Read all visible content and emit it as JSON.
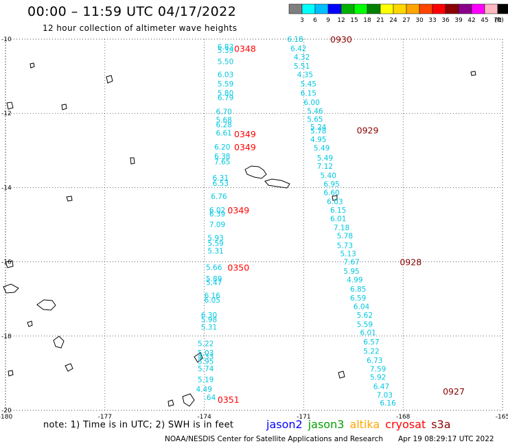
{
  "header": {
    "title": "00:00 – 11:59 UTC 04/17/2022",
    "subtitle": "12 hour collection of altimeter wave heights"
  },
  "colorbar": {
    "unit": "(ft)",
    "ticks": [
      "3",
      "6",
      "9",
      "12",
      "15",
      "18",
      "21",
      "24",
      "27",
      "30",
      "33",
      "36",
      "39",
      "42",
      "45",
      "70"
    ],
    "colors": [
      "#7f7f7f",
      "#00ffff",
      "#00bfff",
      "#0000ff",
      "#00b000",
      "#00ff00",
      "#008000",
      "#ffff00",
      "#ffd700",
      "#ffa500",
      "#ff4500",
      "#ff0000",
      "#8b0000",
      "#8b008b",
      "#ff00ff",
      "#ffb6c1",
      "#000000"
    ]
  },
  "map": {
    "lat_labels": [
      "-10",
      "-12",
      "-14",
      "-16",
      "-18",
      "-20"
    ],
    "lon_labels": [
      "-180",
      "-177",
      "-174",
      "-171",
      "-168",
      "-165"
    ],
    "tracks": [
      {
        "satellite": "jason2",
        "color": "#00c8e0",
        "times": [
          {
            "label": "0348",
            "lat": -10.25,
            "lon": -173.1
          },
          {
            "label": "0349",
            "lat": -12.55,
            "lon": -173.1
          },
          {
            "label": "0349",
            "lat": -12.9,
            "lon": -173.1
          },
          {
            "label": "0349",
            "lat": -14.6,
            "lon": -173.3
          },
          {
            "label": "0350",
            "lat": -16.15,
            "lon": -173.3
          },
          {
            "label": "0351",
            "lat": -19.7,
            "lon": -173.6
          }
        ],
        "points": [
          {
            "v": "6.83",
            "lat": -10.2,
            "lon": -173.6
          },
          {
            "v": "5.39",
            "lat": -10.3,
            "lon": -173.6
          },
          {
            "v": "5.50",
            "lat": -10.6,
            "lon": -173.6
          },
          {
            "v": "6.03",
            "lat": -10.95,
            "lon": -173.6
          },
          {
            "v": "5.59",
            "lat": -11.2,
            "lon": -173.6
          },
          {
            "v": "5.80",
            "lat": -11.45,
            "lon": -173.6
          },
          {
            "v": "6.79",
            "lat": -11.57,
            "lon": -173.6
          },
          {
            "v": "6.70",
            "lat": -11.95,
            "lon": -173.65
          },
          {
            "v": "5.68",
            "lat": -12.17,
            "lon": -173.65
          },
          {
            "v": "6.28",
            "lat": -12.3,
            "lon": -173.65
          },
          {
            "v": "6.61",
            "lat": -12.52,
            "lon": -173.65
          },
          {
            "v": "6.20",
            "lat": -12.9,
            "lon": -173.7
          },
          {
            "v": "6.38",
            "lat": -13.15,
            "lon": -173.7
          },
          {
            "v": "7.65",
            "lat": -13.3,
            "lon": -173.7
          },
          {
            "v": "6.31",
            "lat": -13.73,
            "lon": -173.75
          },
          {
            "v": "6.53",
            "lat": -13.88,
            "lon": -173.75
          },
          {
            "v": "6.76",
            "lat": -14.23,
            "lon": -173.8
          },
          {
            "v": "6.02",
            "lat": -14.6,
            "lon": -173.85
          },
          {
            "v": "6.39",
            "lat": -14.7,
            "lon": -173.85
          },
          {
            "v": "7.09",
            "lat": -14.99,
            "lon": -173.85
          },
          {
            "v": "5.93",
            "lat": -15.35,
            "lon": -173.9
          },
          {
            "v": "5.59",
            "lat": -15.5,
            "lon": -173.9
          },
          {
            "v": "5.31",
            "lat": -15.7,
            "lon": -173.9
          },
          {
            "v": "5.66",
            "lat": -16.15,
            "lon": -173.95
          },
          {
            "v": "5.89",
            "lat": -16.45,
            "lon": -173.95
          },
          {
            "v": "5.47",
            "lat": -16.55,
            "lon": -173.95
          },
          {
            "v": "6.16",
            "lat": -16.9,
            "lon": -174.0
          },
          {
            "v": "6.05",
            "lat": -17.02,
            "lon": -174.0
          },
          {
            "v": "6.30",
            "lat": -17.43,
            "lon": -174.1
          },
          {
            "v": "5.98",
            "lat": -17.55,
            "lon": -174.1
          },
          {
            "v": "5.31",
            "lat": -17.75,
            "lon": -174.1
          },
          {
            "v": "5.22",
            "lat": -18.2,
            "lon": -174.2
          },
          {
            "v": "5.03",
            "lat": -18.45,
            "lon": -174.2
          },
          {
            "v": "4.33",
            "lat": -18.55,
            "lon": -174.2
          },
          {
            "v": "5.95",
            "lat": -18.68,
            "lon": -174.2
          },
          {
            "v": "5.74",
            "lat": -18.87,
            "lon": -174.2
          },
          {
            "v": "5.19",
            "lat": -19.17,
            "lon": -174.2
          },
          {
            "v": "4.49",
            "lat": -19.43,
            "lon": -174.25
          },
          {
            "v": ".64",
            "lat": -19.65,
            "lon": -174.0
          }
        ]
      },
      {
        "satellite": "jason2",
        "color": "#00c8e0",
        "times": [
          {
            "label": "0930",
            "lat": -10.0,
            "lon": -170.2
          },
          {
            "label": "0929",
            "lat": -12.45,
            "lon": -169.4
          },
          {
            "label": "0928",
            "lat": -16.0,
            "lon": -168.1
          },
          {
            "label": "0927",
            "lat": -19.48,
            "lon": -166.8
          }
        ],
        "points": [
          {
            "v": "6.18",
            "lat": -10.0,
            "lon": -171.5
          },
          {
            "v": "6.42",
            "lat": -10.25,
            "lon": -171.4
          },
          {
            "v": "4.32",
            "lat": -10.48,
            "lon": -171.3
          },
          {
            "v": "5.51",
            "lat": -10.72,
            "lon": -171.3
          },
          {
            "v": "4.35",
            "lat": -10.95,
            "lon": -171.2
          },
          {
            "v": "5.45",
            "lat": -11.2,
            "lon": -171.1
          },
          {
            "v": "6.15",
            "lat": -11.45,
            "lon": -171.1
          },
          {
            "v": "6.00",
            "lat": -11.7,
            "lon": -171.0
          },
          {
            "v": "5.46",
            "lat": -11.93,
            "lon": -170.9
          },
          {
            "v": "5.65",
            "lat": -12.15,
            "lon": -170.9
          },
          {
            "v": "5.24",
            "lat": -12.37,
            "lon": -170.8
          },
          {
            "v": "5.78",
            "lat": -12.47,
            "lon": -170.8
          },
          {
            "v": "4.95",
            "lat": -12.7,
            "lon": -170.8
          },
          {
            "v": "5.49",
            "lat": -12.93,
            "lon": -170.7
          },
          {
            "v": "5.49",
            "lat": -13.2,
            "lon": -170.6
          },
          {
            "v": "7.12",
            "lat": -13.42,
            "lon": -170.6
          },
          {
            "v": "5.40",
            "lat": -13.67,
            "lon": -170.5
          },
          {
            "v": "6.95",
            "lat": -13.9,
            "lon": -170.4
          },
          {
            "v": "6.60",
            "lat": -14.13,
            "lon": -170.4
          },
          {
            "v": "6.03",
            "lat": -14.37,
            "lon": -170.3
          },
          {
            "v": "6.15",
            "lat": -14.6,
            "lon": -170.2
          },
          {
            "v": "6.01",
            "lat": -14.83,
            "lon": -170.2
          },
          {
            "v": "7.18",
            "lat": -15.07,
            "lon": -170.1
          },
          {
            "v": "5.78",
            "lat": -15.3,
            "lon": -170.0
          },
          {
            "v": "5.73",
            "lat": -15.55,
            "lon": -170.0
          },
          {
            "v": "5.13",
            "lat": -15.78,
            "lon": -169.9
          },
          {
            "v": "7.67",
            "lat": -16.0,
            "lon": -169.8
          },
          {
            "v": "5.95",
            "lat": -16.25,
            "lon": -169.8
          },
          {
            "v": "4.99",
            "lat": -16.48,
            "lon": -169.7
          },
          {
            "v": "6.85",
            "lat": -16.73,
            "lon": -169.6
          },
          {
            "v": "6.59",
            "lat": -16.97,
            "lon": -169.6
          },
          {
            "v": "6.04",
            "lat": -17.2,
            "lon": -169.5
          },
          {
            "v": "5.62",
            "lat": -17.43,
            "lon": -169.4
          },
          {
            "v": "5.59",
            "lat": -17.68,
            "lon": -169.4
          },
          {
            "v": "6.01",
            "lat": -17.9,
            "lon": -169.3
          },
          {
            "v": "6.57",
            "lat": -18.15,
            "lon": -169.2
          },
          {
            "v": "5.22",
            "lat": -18.4,
            "lon": -169.2
          },
          {
            "v": "6.73",
            "lat": -18.65,
            "lon": -169.1
          },
          {
            "v": "7.59",
            "lat": -18.88,
            "lon": -169.0
          },
          {
            "v": "5.92",
            "lat": -19.1,
            "lon": -169.0
          },
          {
            "v": "6.47",
            "lat": -19.35,
            "lon": -168.9
          },
          {
            "v": "7.03",
            "lat": -19.58,
            "lon": -168.8
          },
          {
            "v": "6.16",
            "lat": -19.8,
            "lon": -168.7
          }
        ]
      }
    ]
  },
  "footer": {
    "note": "note: 1) Time is in UTC; 2) SWH is in feet",
    "legend": [
      {
        "name": "jason2",
        "color": "#0000ff"
      },
      {
        "name": "jason3",
        "color": "#00a000"
      },
      {
        "name": "altika",
        "color": "#ffa500"
      },
      {
        "name": "cryosat",
        "color": "#ff0000"
      },
      {
        "name": "s3a",
        "color": "#8b0000"
      }
    ],
    "credit": "NOAA/NESDIS Center for Satellite Applications and Research",
    "generated": "Apr 19 08:29:17 UTC 2022"
  }
}
